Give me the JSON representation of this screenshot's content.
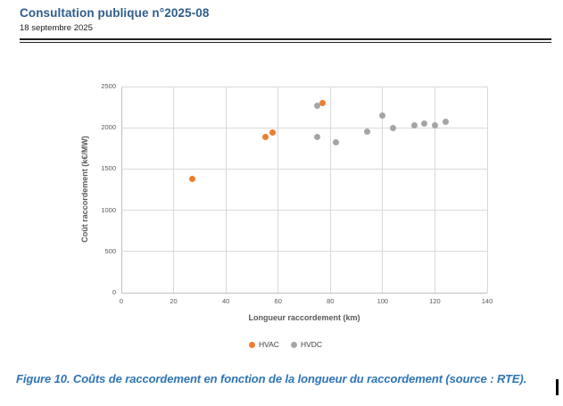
{
  "page": {
    "header": {
      "title": "Consultation publique n°2025-08",
      "date": "18 septembre 2025"
    },
    "figure_caption": "Figure 10. Coûts de raccordement en fonction de la longueur du raccordement (source : RTE)."
  },
  "chart_data": {
    "type": "scatter",
    "title": "",
    "xlabel": "Longueur raccordement (km)",
    "ylabel": "Coût raccordement (k€/MW)",
    "xlim": [
      0,
      140
    ],
    "ylim": [
      0,
      2500
    ],
    "x_ticks": [
      0,
      20,
      40,
      60,
      80,
      100,
      120,
      140
    ],
    "y_ticks": [
      0,
      500,
      1000,
      1500,
      2000,
      2500
    ],
    "grid": true,
    "legend_position": "bottom",
    "series": [
      {
        "name": "HVAC",
        "color": "#ED7D31",
        "points": [
          [
            27,
            1380
          ],
          [
            55,
            1890
          ],
          [
            58,
            1940
          ],
          [
            77,
            2300
          ]
        ]
      },
      {
        "name": "HVDC",
        "color": "#A5A5A5",
        "points": [
          [
            75,
            2270
          ],
          [
            75,
            1890
          ],
          [
            82,
            1820
          ],
          [
            94,
            1950
          ],
          [
            100,
            2150
          ],
          [
            104,
            2000
          ],
          [
            112,
            2030
          ],
          [
            116,
            2050
          ],
          [
            120,
            2030
          ],
          [
            124,
            2070
          ]
        ]
      }
    ]
  },
  "colors": {
    "header_blue": "#2F5D8C",
    "caption_blue": "#2E74B5",
    "hvac_orange": "#ED7D31",
    "hvdc_gray": "#A5A5A5",
    "axis_text": "#595959",
    "gridline": "#D9D9D9",
    "axis_line": "#BFBFBF"
  }
}
